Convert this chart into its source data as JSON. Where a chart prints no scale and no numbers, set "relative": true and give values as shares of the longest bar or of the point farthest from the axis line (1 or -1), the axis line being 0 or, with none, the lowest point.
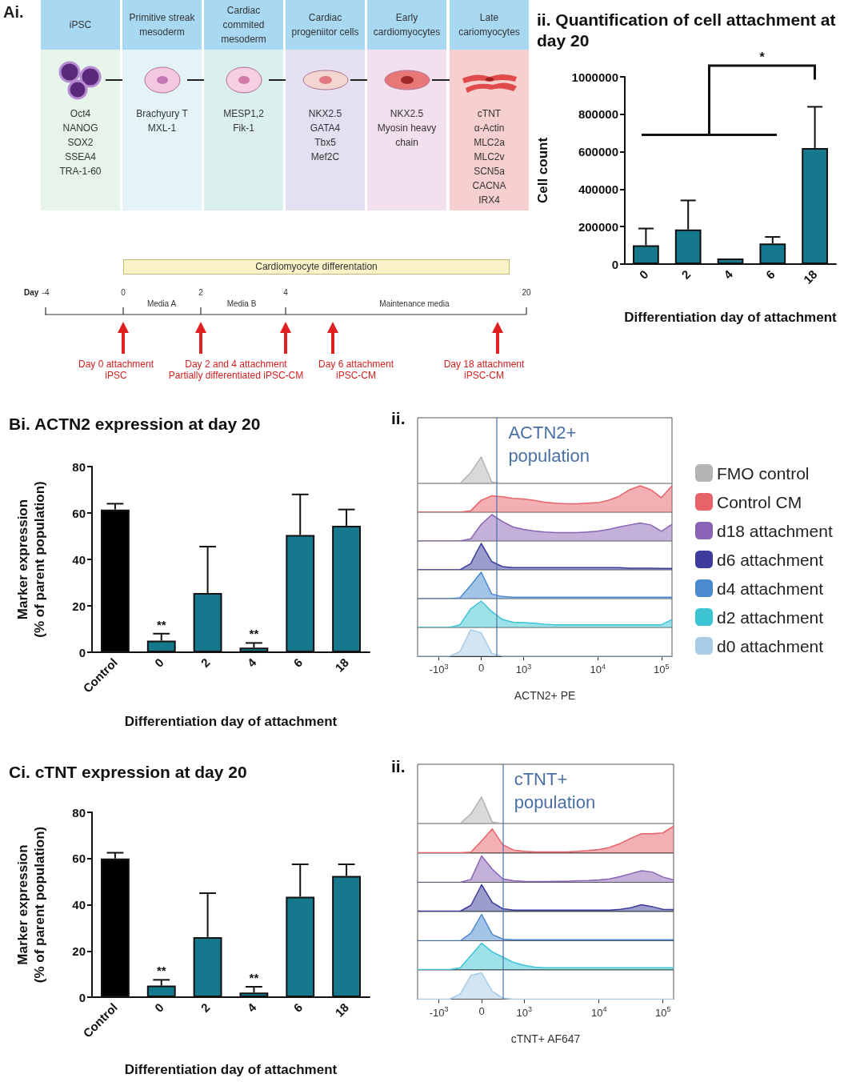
{
  "chart_data": [
    {
      "type": "other",
      "title": "Ai.",
      "categories": [
        "iPSC",
        "Primitive streak mesoderm",
        "Cardiac commited mesoderm",
        "Cardiac progeniitor cells",
        "Early cardiomyocytes",
        "Late cariomyocytes"
      ],
      "annotations": [
        "Oct4\nNANOG\nSOX2\nSSEA4\nTRA-1-60",
        "Brachyury T\nMXL-1",
        "MESP1,2\nFik-1",
        "NKX2.5\nGATA4\nTbx5\nMef2C",
        "NKX2.5\nMyosin heavy\nchain",
        "cTNT\nα-Actin\nMLC2a\nMLC2v\nSCN5a\nCACNA\nIRX4",
        "Cardiomyocyte differentation",
        "Day",
        "-4",
        "0",
        "2",
        "4",
        "20",
        "Media A",
        "Media B",
        "Maintenance media",
        "Day 0 attachment\niPSC",
        "Day 2 and 4 attachment\nPartially differentiated iPSC-CM",
        "Day 6 attachment\niPSC-CM",
        "Day 18 attachment\niPSC-CM"
      ]
    },
    {
      "type": "bar",
      "title": "ii. Quantification of cell attachment at day 20",
      "xlabel": "Differentiation day of attachment",
      "ylabel": "Cell count",
      "categories": [
        "0",
        "2",
        "4",
        "6",
        "18"
      ],
      "values": [
        100000,
        185000,
        30000,
        110000,
        620000
      ],
      "color": "#15788c",
      "errors": [
        [
          100000,
          190000
        ],
        [
          185000,
          340000
        ],
        null,
        [
          110000,
          145000
        ],
        [
          620000,
          840000
        ]
      ],
      "ylim": [
        0,
        1000000
      ],
      "yticks": [
        0,
        200000,
        400000,
        600000,
        800000,
        1000000
      ],
      "annotations": [
        "*"
      ]
    },
    {
      "type": "bar",
      "title": "Bi. ACTN2 expression at day 20",
      "xlabel": "Differentiation day of attachment",
      "ylabel": "Marker expression\n(% of parent population)",
      "categories": [
        "Control",
        "0",
        "2",
        "4",
        "6",
        "18"
      ],
      "values": [
        61.5,
        5,
        25.5,
        2,
        50.5,
        54.5
      ],
      "colors": [
        "#000000",
        "#15788c",
        "#15788c",
        "#15788c",
        "#15788c",
        "#15788c"
      ],
      "errors": [
        [
          61.5,
          64
        ],
        [
          5,
          8
        ],
        [
          25.5,
          45.5
        ],
        [
          2,
          4
        ],
        [
          50.5,
          68
        ],
        [
          54.5,
          61.5
        ]
      ],
      "ylim": [
        0,
        80
      ],
      "yticks": [
        0,
        20,
        40,
        60,
        80
      ],
      "annotations": [
        {
          "text": "**",
          "x": "0",
          "y": 8
        },
        {
          "text": "**",
          "x": "4",
          "y": 4
        }
      ]
    },
    {
      "type": "area",
      "title": "ii.",
      "relative": true,
      "legend": "right",
      "tick_labels": false,
      "annotations": [
        "ACTN2+ population"
      ],
      "categories": [
        null,
        null,
        "-10$^{3}$",
        null,
        null,
        null,
        "0",
        null,
        null,
        null,
        "10$^{3}$",
        null,
        null,
        null,
        null,
        null,
        null,
        "10$^{4}$",
        null,
        null,
        null,
        null,
        null,
        "10$^{5}$",
        null
      ],
      "series": [
        {
          "name": "FMO control",
          "color": "#b4b4b4",
          "values": [
            0,
            0,
            0,
            0,
            0,
            0.4,
            1,
            0.05,
            0,
            0,
            0,
            0,
            0,
            0,
            0,
            0,
            0,
            0,
            0,
            0,
            0,
            0,
            0,
            0,
            0
          ]
        }
      ]
    },
    {
      "type": "area",
      "relative": true,
      "legend": "right",
      "tick_labels": false,
      "categories": [
        null,
        null,
        "-10$^{3}$",
        null,
        null,
        null,
        "0",
        null,
        null,
        null,
        "10$^{3}$",
        null,
        null,
        null,
        null,
        null,
        null,
        "10$^{4}$",
        null,
        null,
        null,
        null,
        null,
        "10$^{5}$",
        null
      ],
      "series": [
        {
          "name": "Control CM",
          "color": "#e8626a",
          "values": [
            0,
            0,
            0,
            0,
            0,
            0.05,
            0.45,
            0.62,
            0.58,
            0.52,
            0.5,
            0.45,
            0.38,
            0.34,
            0.32,
            0.32,
            0.34,
            0.36,
            0.45,
            0.6,
            0.85,
            1,
            0.85,
            0.55,
            1
          ]
        }
      ]
    },
    {
      "type": "area",
      "relative": true,
      "legend": "right",
      "tick_labels": false,
      "categories": [
        null,
        null,
        "-10$^{3}$",
        null,
        null,
        null,
        "0",
        null,
        null,
        null,
        "10$^{3}$",
        null,
        null,
        null,
        null,
        null,
        null,
        "10$^{4}$",
        null,
        null,
        null,
        null,
        null,
        "10$^{5}$",
        null
      ],
      "series": [
        {
          "name": "d18 attachment",
          "color": "#8a64b4",
          "values": [
            0,
            0,
            0,
            0,
            0,
            0.08,
            0.63,
            1,
            0.74,
            0.53,
            0.44,
            0.38,
            0.34,
            0.32,
            0.32,
            0.32,
            0.34,
            0.37,
            0.44,
            0.53,
            0.61,
            0.68,
            0.61,
            0.37,
            0.63
          ]
        }
      ]
    },
    {
      "type": "area",
      "relative": true,
      "legend": "right",
      "tick_labels": false,
      "categories": [
        null,
        null,
        "-10$^{3}$",
        null,
        null,
        null,
        "0",
        null,
        null,
        null,
        "10$^{3}$",
        null,
        null,
        null,
        null,
        null,
        null,
        "10$^{4}$",
        null,
        null,
        null,
        null,
        null,
        "10$^{5}$",
        null
      ],
      "series": [
        {
          "name": "d6 attachment",
          "color": "#3c3c9c",
          "values": [
            0,
            0,
            0,
            0,
            0,
            0.23,
            1,
            0.31,
            0.12,
            0.08,
            0.08,
            0.08,
            0.08,
            0.08,
            0.08,
            0.08,
            0.08,
            0.08,
            0.08,
            0.08,
            0.06,
            0.06,
            0.06,
            0.05,
            0.05
          ]
        }
      ]
    },
    {
      "type": "area",
      "relative": true,
      "legend": "right",
      "tick_labels": false,
      "categories": [
        null,
        null,
        "-10$^{3}$",
        null,
        null,
        null,
        "0",
        null,
        null,
        null,
        "10$^{3}$",
        null,
        null,
        null,
        null,
        null,
        null,
        "10$^{4}$",
        null,
        null,
        null,
        null,
        null,
        "10$^{5}$",
        null
      ],
      "series": [
        {
          "name": "d4 attachment",
          "color": "#4a8ad0",
          "values": [
            0,
            0,
            0,
            0,
            0.03,
            0.5,
            1,
            0.17,
            0.08,
            0.05,
            0.05,
            0.05,
            0.05,
            0.05,
            0.05,
            0.05,
            0.05,
            0.05,
            0.05,
            0.05,
            0.05,
            0.05,
            0.05,
            0.05,
            0.05
          ]
        }
      ]
    },
    {
      "type": "area",
      "relative": true,
      "legend": "right",
      "tick_labels": false,
      "categories": [
        null,
        null,
        "-10$^{3}$",
        null,
        null,
        null,
        "0",
        null,
        null,
        null,
        "10$^{3}$",
        null,
        null,
        null,
        null,
        null,
        null,
        "10$^{4}$",
        null,
        null,
        null,
        null,
        null,
        "10$^{5}$",
        null
      ],
      "series": [
        {
          "name": "d2 attachment",
          "color": "#3cc4d4",
          "values": [
            0,
            0,
            0,
            0,
            0.1,
            0.7,
            1,
            0.6,
            0.3,
            0.2,
            0.18,
            0.16,
            0.12,
            0.1,
            0.1,
            0.1,
            0.1,
            0.1,
            0.1,
            0.1,
            0.1,
            0.1,
            0.1,
            0.1,
            0.3
          ]
        }
      ]
    },
    {
      "type": "area",
      "relative": true,
      "legend": "right",
      "xlabel": "ACTN2+ PE",
      "categories": [
        null,
        null,
        "-10$^{3}$",
        null,
        null,
        null,
        "0",
        null,
        null,
        null,
        "10$^{3}$",
        null,
        null,
        null,
        null,
        null,
        null,
        "10$^{4}$",
        null,
        null,
        null,
        null,
        null,
        "10$^{5}$",
        null
      ],
      "series": [
        {
          "name": "d0 attachment",
          "color": "#a8cce8",
          "values": [
            0,
            0,
            0,
            0,
            0.18,
            1,
            0.89,
            0.11,
            0,
            0,
            0,
            0,
            0,
            0,
            0,
            0,
            0,
            0,
            0,
            0,
            0,
            0,
            0,
            0,
            0
          ]
        }
      ]
    },
    {
      "type": "bar",
      "title": "Ci. cTNT expression at day 20",
      "xlabel": "Differentiation day of attachment",
      "ylabel": "Marker expression\n(% of parent population)",
      "categories": [
        "Control",
        "0",
        "2",
        "4",
        "6",
        "18"
      ],
      "values": [
        60,
        5,
        26,
        2,
        43.5,
        52.5
      ],
      "colors": [
        "#000000",
        "#15788c",
        "#15788c",
        "#15788c",
        "#15788c",
        "#15788c"
      ],
      "errors": [
        [
          60,
          62.5
        ],
        [
          5,
          7.5
        ],
        [
          26,
          45
        ],
        [
          2,
          4.5
        ],
        [
          43.5,
          57.5
        ],
        [
          52.5,
          57.5
        ]
      ],
      "ylim": [
        0,
        80
      ],
      "yticks": [
        0,
        20,
        40,
        60,
        80
      ],
      "annotations": [
        {
          "text": "**",
          "x": "0",
          "y": 7.5
        },
        {
          "text": "**",
          "x": "4",
          "y": 4.5
        }
      ]
    },
    {
      "type": "area",
      "title": "ii.",
      "relative": true,
      "tick_labels": false,
      "annotations": [
        "cTNT+ population"
      ],
      "categories": [
        null,
        null,
        "-10$^{3}$",
        null,
        null,
        null,
        "0",
        null,
        null,
        null,
        "10$^{3}$",
        null,
        null,
        null,
        null,
        null,
        null,
        "10$^{4}$",
        null,
        null,
        null,
        null,
        null,
        "10$^{5}$",
        null
      ],
      "series": [
        {
          "color": "#b4b4b4",
          "values": [
            0,
            0,
            0,
            0,
            0,
            0.37,
            1,
            0.05,
            0,
            0,
            0,
            0,
            0,
            0,
            0,
            0,
            0,
            0,
            0,
            0,
            0,
            0,
            0,
            0,
            0
          ]
        }
      ]
    },
    {
      "type": "area",
      "relative": true,
      "tick_labels": false,
      "categories": [
        null,
        null,
        "-10$^{3}$",
        null,
        null,
        null,
        "0",
        null,
        null,
        null,
        "10$^{3}$",
        null,
        null,
        null,
        null,
        null,
        null,
        "10$^{4}$",
        null,
        null,
        null,
        null,
        null,
        "10$^{5}$",
        null
      ],
      "series": [
        {
          "color": "#e8626a",
          "values": [
            0,
            0,
            0,
            0,
            0,
            0.02,
            0.45,
            0.9,
            0.3,
            0.1,
            0.05,
            0.03,
            0.03,
            0.03,
            0.03,
            0.05,
            0.08,
            0.12,
            0.2,
            0.35,
            0.55,
            0.72,
            0.72,
            0.75,
            1
          ]
        }
      ]
    },
    {
      "type": "area",
      "relative": true,
      "tick_labels": false,
      "categories": [
        null,
        null,
        "-10$^{3}$",
        null,
        null,
        null,
        "0",
        null,
        null,
        null,
        "10$^{3}$",
        null,
        null,
        null,
        null,
        null,
        null,
        "10$^{4}$",
        null,
        null,
        null,
        null,
        null,
        "10$^{5}$",
        null
      ],
      "series": [
        {
          "color": "#8a64b4",
          "values": [
            0,
            0,
            0,
            0,
            0,
            0.11,
            1,
            0.5,
            0.13,
            0.06,
            0.04,
            0.03,
            0.03,
            0.04,
            0.04,
            0.06,
            0.07,
            0.09,
            0.13,
            0.22,
            0.33,
            0.44,
            0.39,
            0.2,
            0.09
          ]
        }
      ]
    },
    {
      "type": "area",
      "relative": true,
      "tick_labels": false,
      "categories": [
        null,
        null,
        "-10$^{3}$",
        null,
        null,
        null,
        "0",
        null,
        null,
        null,
        "10$^{3}$",
        null,
        null,
        null,
        null,
        null,
        null,
        "10$^{4}$",
        null,
        null,
        null,
        null,
        null,
        "10$^{5}$",
        null
      ],
      "series": [
        {
          "color": "#3c3c9c",
          "values": [
            0,
            0,
            0,
            0,
            0,
            0.22,
            1,
            0.33,
            0.09,
            0.04,
            0.04,
            0.04,
            0.04,
            0.04,
            0.04,
            0.04,
            0.04,
            0.04,
            0.04,
            0.07,
            0.13,
            0.24,
            0.17,
            0.07,
            0.06
          ]
        }
      ]
    },
    {
      "type": "area",
      "relative": true,
      "tick_labels": false,
      "categories": [
        null,
        null,
        "-10$^{3}$",
        null,
        null,
        null,
        "0",
        null,
        null,
        null,
        "10$^{3}$",
        null,
        null,
        null,
        null,
        null,
        null,
        "10$^{4}$",
        null,
        null,
        null,
        null,
        null,
        "10$^{5}$",
        null
      ],
      "series": [
        {
          "color": "#4a8ad0",
          "values": [
            0,
            0,
            0,
            0,
            0,
            0.29,
            1,
            0.24,
            0.06,
            0.04,
            0.04,
            0.04,
            0.04,
            0.04,
            0.04,
            0.04,
            0.04,
            0.04,
            0.04,
            0.04,
            0.04,
            0.04,
            0.04,
            0.04,
            0.04
          ]
        }
      ]
    },
    {
      "type": "area",
      "relative": true,
      "tick_labels": false,
      "categories": [
        null,
        null,
        "-10$^{3}$",
        null,
        null,
        null,
        "0",
        null,
        null,
        null,
        "10$^{3}$",
        null,
        null,
        null,
        null,
        null,
        null,
        "10$^{4}$",
        null,
        null,
        null,
        null,
        null,
        "10$^{5}$",
        null
      ],
      "series": [
        {
          "color": "#3cc4d4",
          "values": [
            0,
            0,
            0,
            0,
            0.07,
            0.53,
            1,
            0.67,
            0.47,
            0.27,
            0.16,
            0.09,
            0.07,
            0.07,
            0.07,
            0.07,
            0.07,
            0.07,
            0.07,
            0.07,
            0.07,
            0.07,
            0.07,
            0.07,
            0.07
          ]
        }
      ]
    },
    {
      "type": "area",
      "relative": true,
      "xlabel": "cTNT+ AF647",
      "categories": [
        null,
        null,
        "-10$^{3}$",
        null,
        null,
        null,
        "0",
        null,
        null,
        null,
        "10$^{3}$",
        null,
        null,
        null,
        null,
        null,
        null,
        "10$^{4}$",
        null,
        null,
        null,
        null,
        null,
        "10$^{5}$",
        null
      ],
      "series": [
        {
          "color": "#a8cce8",
          "values": [
            0,
            0,
            0,
            0,
            0.2,
            0.9,
            1,
            0.3,
            0.04,
            0,
            0,
            0,
            0,
            0,
            0,
            0,
            0,
            0,
            0,
            0,
            0,
            0,
            0,
            0,
            0
          ]
        }
      ]
    }
  ]
}
